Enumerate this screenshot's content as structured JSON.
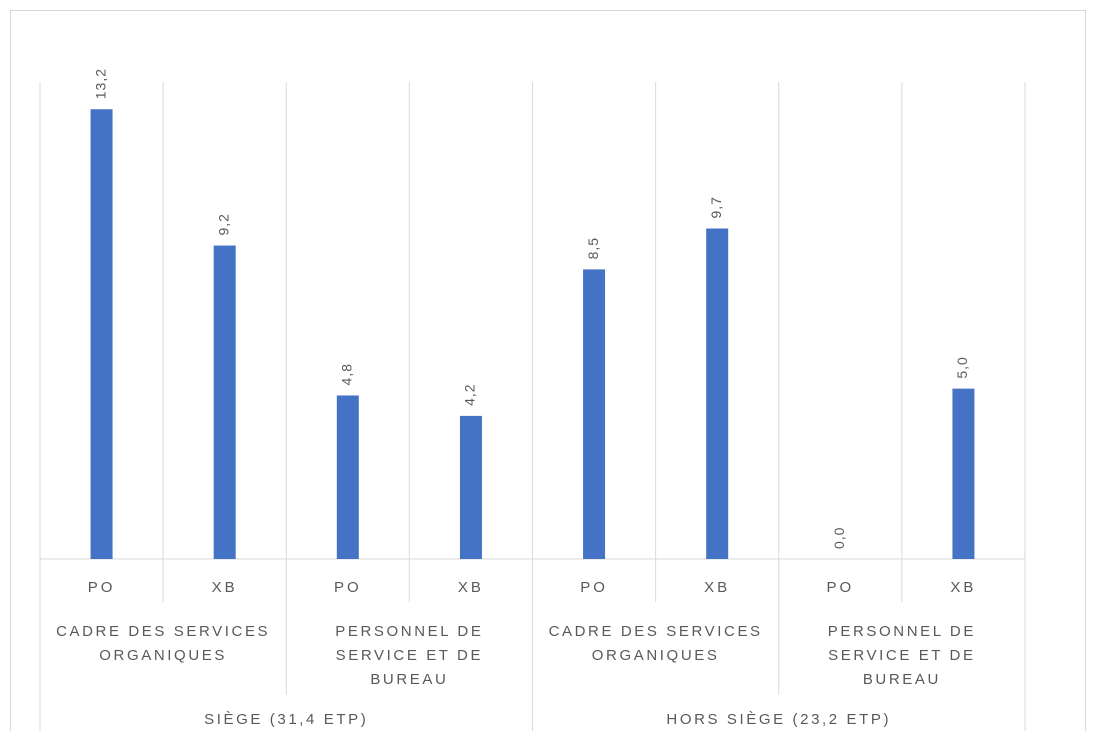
{
  "chart_data": {
    "type": "bar",
    "categories": [
      "PO",
      "XB",
      "PO",
      "XB",
      "PO",
      "XB",
      "PO",
      "XB"
    ],
    "category_groups": [
      "CADRE DES SERVICES ORGANIQUES",
      "PERSONNEL DE SERVICE ET DE BUREAU",
      "CADRE DES SERVICES ORGANIQUES",
      "PERSONNEL DE SERVICE ET DE BUREAU"
    ],
    "super_groups": [
      "SIÈGE (31,4 ETP)",
      "HORS SIÈGE (23,2 ETP)"
    ],
    "values": [
      13.2,
      9.2,
      4.8,
      4.2,
      8.5,
      9.7,
      0.0,
      5.0
    ],
    "value_labels": [
      "13,2",
      "9,2",
      "4,8",
      "4,2",
      "8,5",
      "9,7",
      "0,0",
      "5,0"
    ],
    "color": "#4472c4",
    "ylim": [
      0,
      14
    ]
  }
}
